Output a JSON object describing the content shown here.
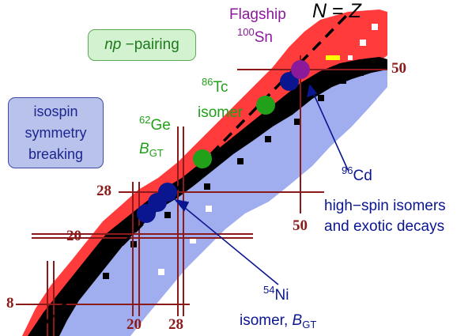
{
  "boxes": {
    "np_pairing": {
      "italic": "np",
      "rest": " −pairing"
    },
    "isospin": {
      "line1": "isospin",
      "line2": "symmetry",
      "line3": "breaking"
    }
  },
  "labels": {
    "flagship": "Flagship",
    "sn_mass": "100",
    "sn_el": "Sn",
    "nz_n": "N",
    "nz_eq": " = ",
    "nz_z": "Z",
    "tc_mass": "86",
    "tc_el": "Tc",
    "tc_iso": "isomer",
    "ge_mass": "62",
    "ge_el": "Ge",
    "ge_b": "B",
    "ge_gt": "GT",
    "cd_mass": "96",
    "cd_el": "Cd",
    "hs_line1": "high−spin isomers",
    "hs_line2": "and exotic decays",
    "ni_mass": "54",
    "ni_el": "Ni",
    "ni_iso": "isomer, ",
    "ni_b": "B",
    "ni_gt": "GT"
  },
  "magic_numbers": {
    "v50": "50",
    "h50": "50",
    "v28": "28",
    "v20": "20",
    "v8": "8",
    "h20": "20",
    "h28": "28"
  },
  "colors": {
    "red_region": "#ff3b3b",
    "blue_region": "#a0aef0",
    "black_stable": "#000000",
    "magic_line": "#8b1a1a",
    "green_marker": "#22a01a",
    "navy_marker": "#0a1690",
    "purple_marker": "#8a1a9a",
    "yellow_mark": "#ffff00"
  }
}
